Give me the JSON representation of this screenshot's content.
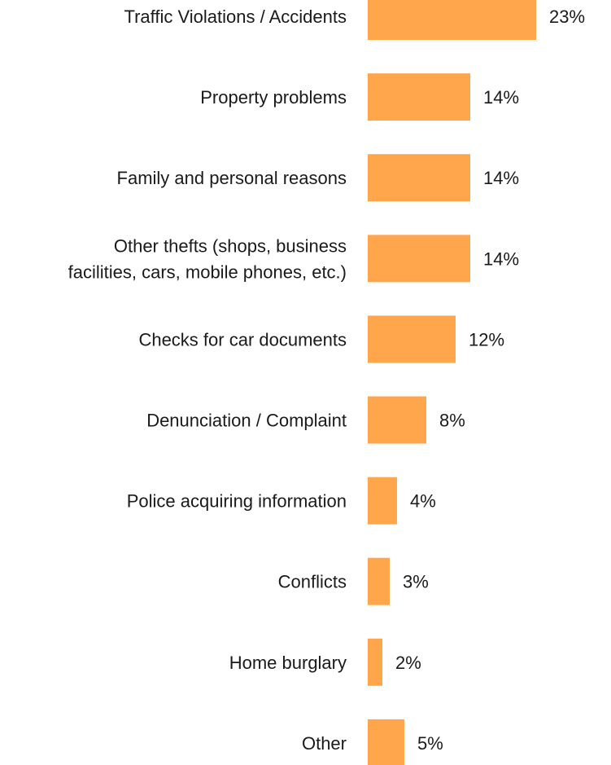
{
  "chart_data": {
    "type": "bar",
    "orientation": "horizontal",
    "categories": [
      "Traffic Violations / Accidents",
      "Property problems",
      "Family and personal reasons",
      "Other thefts (shops, business\nfacilities, cars, mobile phones, etc.)",
      "Checks for car documents",
      "Denunciation / Complaint",
      "Police acquiring information",
      "Conflicts",
      "Home burglary",
      "Other"
    ],
    "values": [
      23,
      14,
      14,
      14,
      12,
      8,
      4,
      3,
      2,
      5
    ],
    "value_labels": [
      "23%",
      "14%",
      "14%",
      "14%",
      "12%",
      "8%",
      "4%",
      "3%",
      "2%",
      "5%"
    ],
    "unit": "%",
    "title": "",
    "xlabel": "",
    "ylabel": "",
    "grid": false,
    "legend": "none",
    "bar_color": "#FFA64D"
  }
}
